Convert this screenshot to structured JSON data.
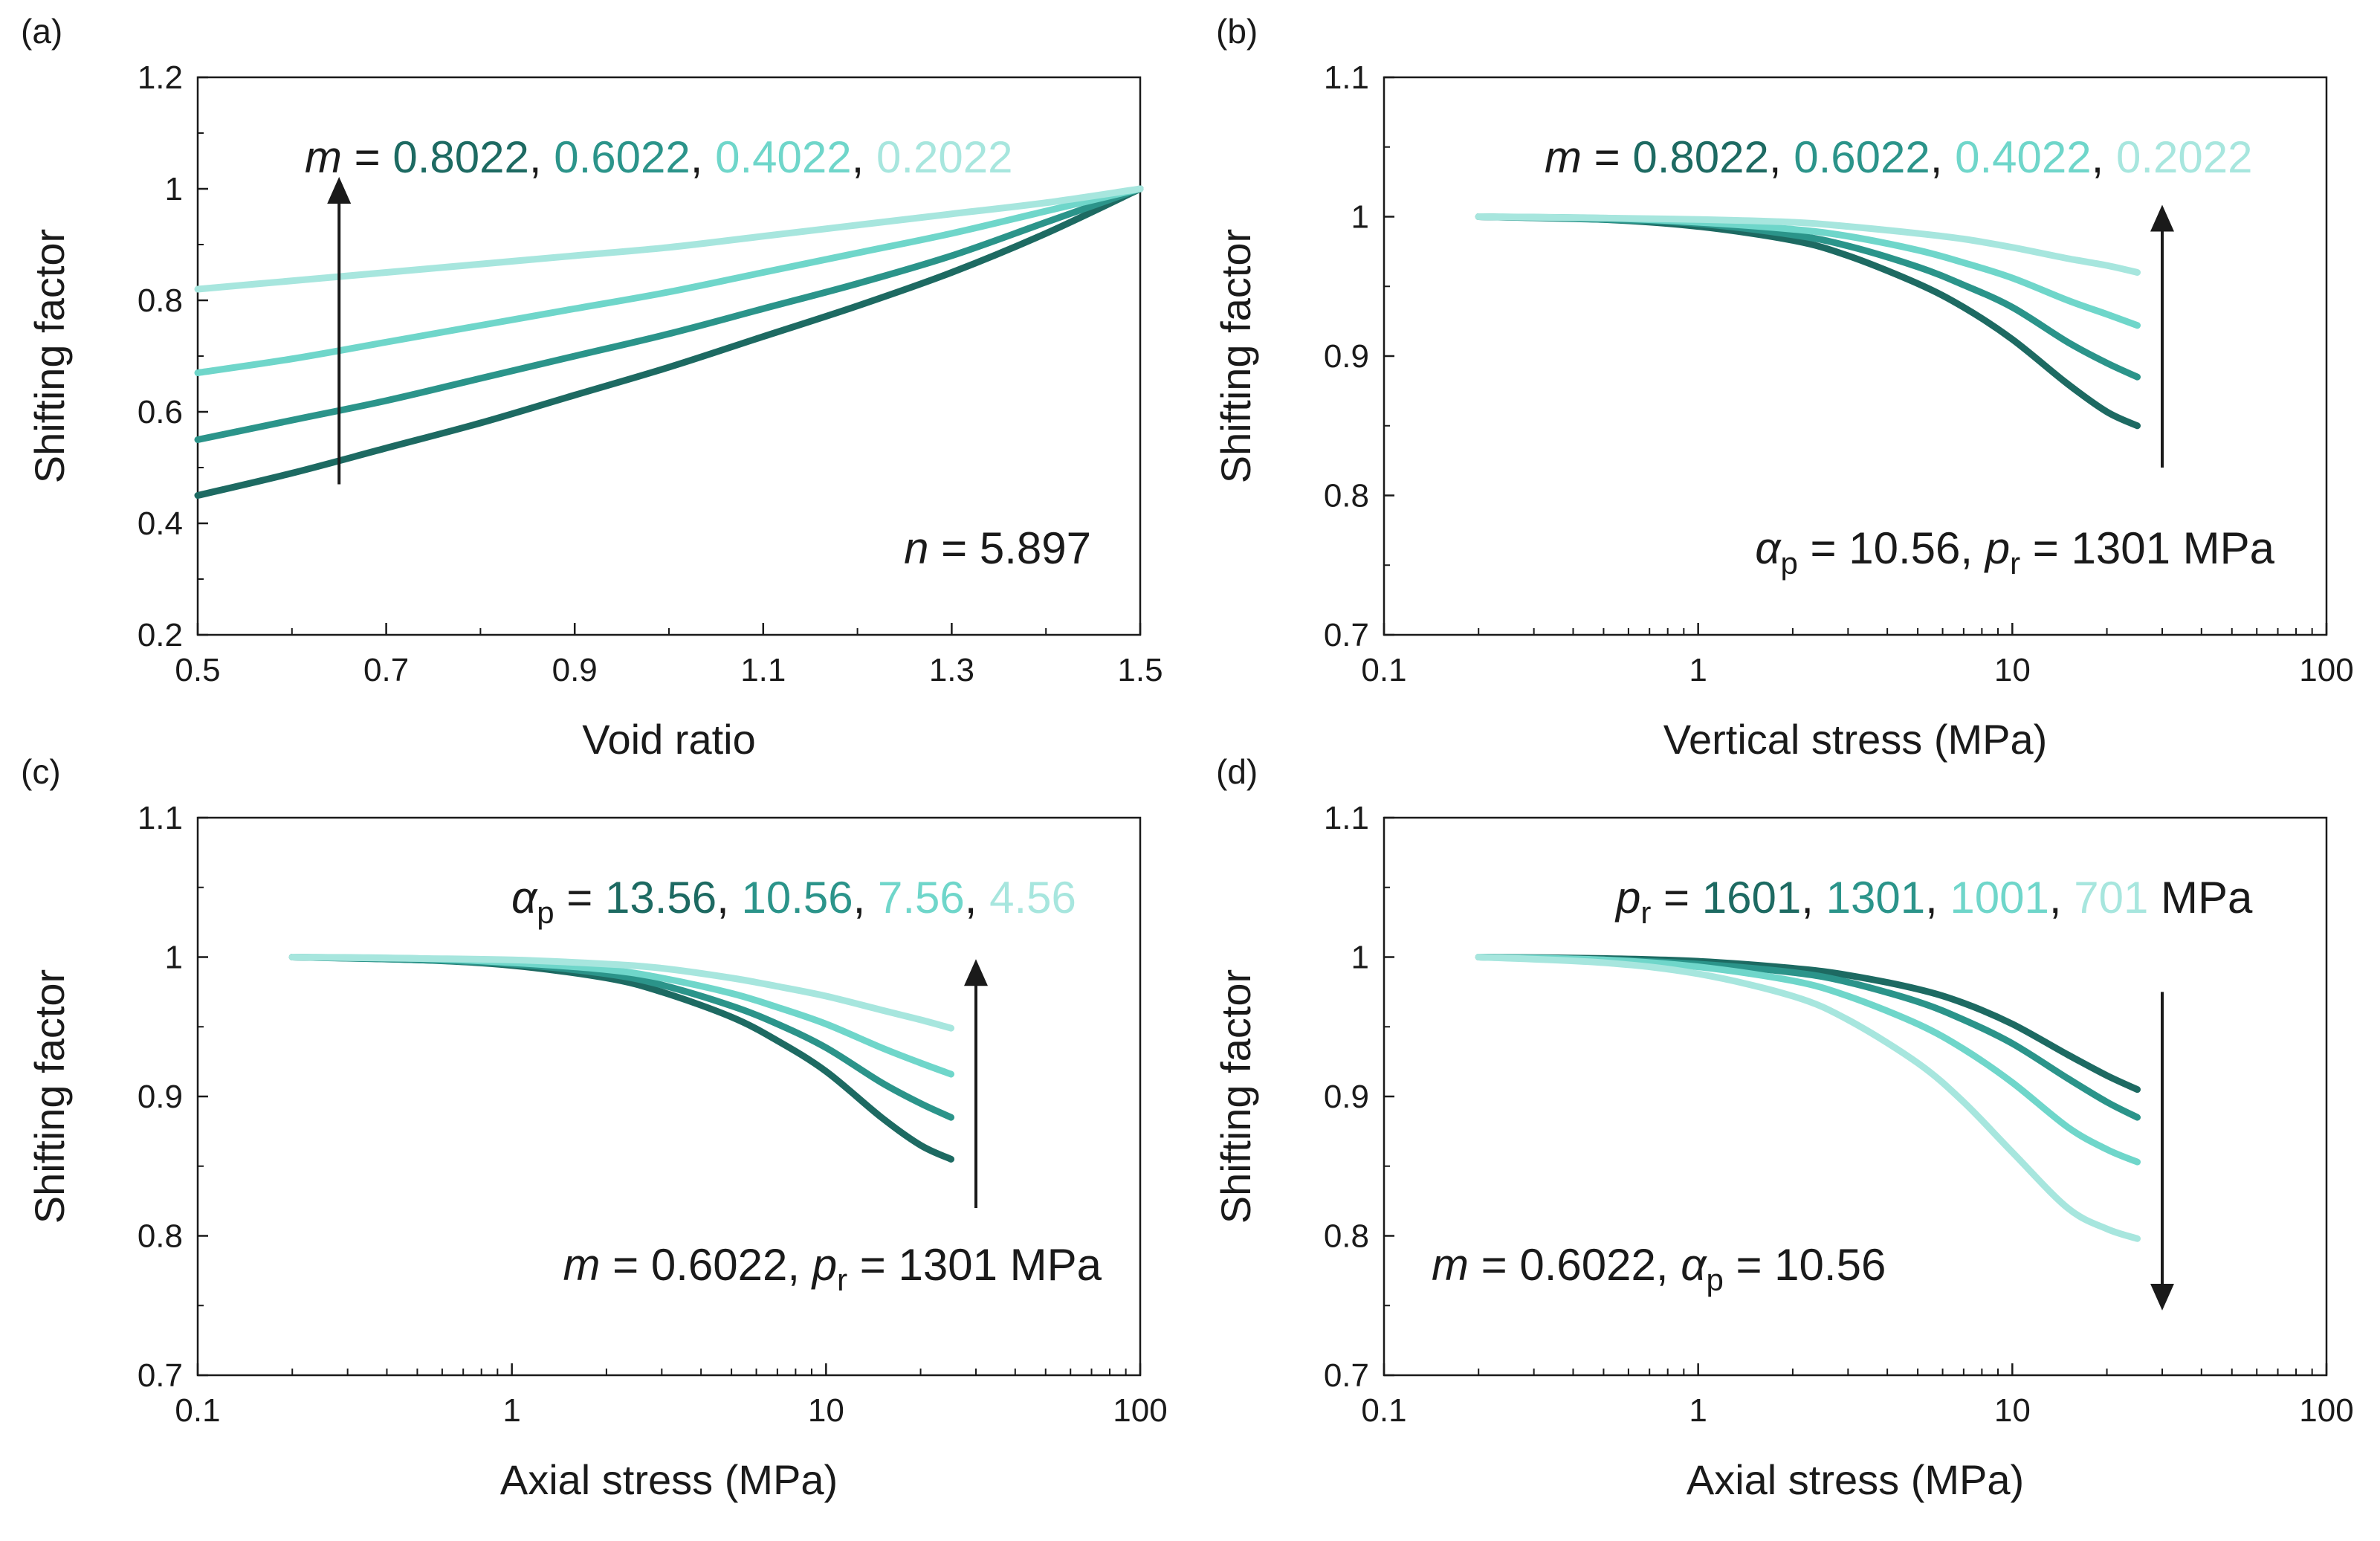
{
  "colors": {
    "darkest": "#1d6a62",
    "dark": "#2b948a",
    "medium": "#6fd6ca",
    "light": "#a7e6de",
    "axis": "#1a1a1a"
  },
  "chart_data": [
    {
      "panel": "(a)",
      "type": "line",
      "xscale": "linear",
      "xlabel": "Void ratio",
      "ylabel": "Shifting factor",
      "xlim": [
        0.5,
        1.5
      ],
      "ylim": [
        0.2,
        1.2
      ],
      "xticks": [
        0.5,
        0.7,
        0.9,
        1.1,
        1.3,
        1.5
      ],
      "xtick_labels": [
        "0.5",
        "0.7",
        "0.9",
        "1.1",
        "1.3",
        "1.5"
      ],
      "yticks": [
        0.2,
        0.4,
        0.6,
        0.8,
        1.0,
        1.2
      ],
      "ytick_labels": [
        "0.2",
        "0.4",
        "0.6",
        "0.8",
        "1",
        "1.2"
      ],
      "legend_parts": [
        {
          "text": "m",
          "italic": true,
          "color_key": "axis"
        },
        {
          "text": " = ",
          "color_key": "axis"
        },
        {
          "text": "0.8022",
          "color_key": "darkest"
        },
        {
          "text": ", ",
          "color_key": "axis"
        },
        {
          "text": "0.6022",
          "color_key": "dark"
        },
        {
          "text": ", ",
          "color_key": "axis"
        },
        {
          "text": "0.4022",
          "color_key": "medium"
        },
        {
          "text": ", ",
          "color_key": "axis"
        },
        {
          "text": "0.2022",
          "color_key": "light"
        }
      ],
      "annotation_parts": [
        {
          "text": "n",
          "italic": true
        },
        {
          "text": " = 5.897"
        }
      ],
      "arrow": {
        "x": 0.65,
        "y_from": 0.47,
        "y_to": 1.0,
        "direction": "up"
      },
      "series": [
        {
          "name": "m = 0.8022",
          "color_key": "darkest",
          "x": [
            0.5,
            0.6,
            0.7,
            0.8,
            0.9,
            1.0,
            1.1,
            1.2,
            1.3,
            1.4,
            1.5
          ],
          "y": [
            0.45,
            0.49,
            0.535,
            0.58,
            0.63,
            0.68,
            0.735,
            0.79,
            0.85,
            0.92,
            1.0
          ]
        },
        {
          "name": "m = 0.6022",
          "color_key": "dark",
          "x": [
            0.5,
            0.6,
            0.7,
            0.8,
            0.9,
            1.0,
            1.1,
            1.2,
            1.3,
            1.4,
            1.5
          ],
          "y": [
            0.55,
            0.585,
            0.62,
            0.66,
            0.7,
            0.74,
            0.785,
            0.83,
            0.88,
            0.94,
            1.0
          ]
        },
        {
          "name": "m = 0.4022",
          "color_key": "medium",
          "x": [
            0.5,
            0.6,
            0.7,
            0.8,
            0.9,
            1.0,
            1.1,
            1.2,
            1.3,
            1.4,
            1.5
          ],
          "y": [
            0.67,
            0.695,
            0.725,
            0.755,
            0.785,
            0.815,
            0.85,
            0.885,
            0.92,
            0.96,
            1.0
          ]
        },
        {
          "name": "m = 0.2022",
          "color_key": "light",
          "x": [
            0.5,
            0.6,
            0.7,
            0.8,
            0.9,
            1.0,
            1.1,
            1.2,
            1.3,
            1.4,
            1.5
          ],
          "y": [
            0.82,
            0.835,
            0.85,
            0.865,
            0.88,
            0.895,
            0.915,
            0.935,
            0.955,
            0.975,
            1.0
          ]
        }
      ]
    },
    {
      "panel": "(b)",
      "type": "line",
      "xscale": "log",
      "xlabel": "Vertical stress (MPa)",
      "ylabel": "Shifting factor",
      "xlim": [
        0.1,
        100
      ],
      "ylim": [
        0.7,
        1.1
      ],
      "xticks": [
        0.1,
        1,
        10,
        100
      ],
      "xtick_labels": [
        "0.1",
        "1",
        "10",
        "100"
      ],
      "yticks": [
        0.7,
        0.8,
        0.9,
        1.0,
        1.1
      ],
      "ytick_labels": [
        "0.7",
        "0.8",
        "0.9",
        "1",
        "1.1"
      ],
      "legend_parts": [
        {
          "text": "m",
          "italic": true,
          "color_key": "axis"
        },
        {
          "text": " = ",
          "color_key": "axis"
        },
        {
          "text": "0.8022",
          "color_key": "darkest"
        },
        {
          "text": ", ",
          "color_key": "axis"
        },
        {
          "text": "0.6022",
          "color_key": "dark"
        },
        {
          "text": ", ",
          "color_key": "axis"
        },
        {
          "text": "0.4022",
          "color_key": "medium"
        },
        {
          "text": ", ",
          "color_key": "axis"
        },
        {
          "text": "0.2022",
          "color_key": "light"
        }
      ],
      "annotation_parts": [
        {
          "text": "α",
          "italic": true
        },
        {
          "text": "p",
          "sub": true
        },
        {
          "text": " = 10.56, "
        },
        {
          "text": "p",
          "italic": true
        },
        {
          "text": "r",
          "sub": true
        },
        {
          "text": " = 1301 MPa"
        }
      ],
      "arrow": {
        "x": 30,
        "y_from": 0.82,
        "y_to": 1.0,
        "direction": "up"
      },
      "series": [
        {
          "name": "m = 0.8022",
          "color_key": "darkest",
          "x": [
            0.2,
            0.5,
            1,
            2,
            3,
            5,
            7,
            10,
            15,
            20,
            25
          ],
          "y": [
            1.0,
            0.998,
            0.993,
            0.983,
            0.972,
            0.952,
            0.935,
            0.912,
            0.88,
            0.86,
            0.85
          ]
        },
        {
          "name": "m = 0.6022",
          "color_key": "dark",
          "x": [
            0.2,
            0.5,
            1,
            2,
            3,
            5,
            7,
            10,
            15,
            20,
            25
          ],
          "y": [
            1.0,
            0.998,
            0.995,
            0.987,
            0.979,
            0.964,
            0.951,
            0.935,
            0.91,
            0.895,
            0.885
          ]
        },
        {
          "name": "m = 0.4022",
          "color_key": "medium",
          "x": [
            0.2,
            0.5,
            1,
            2,
            3,
            5,
            7,
            10,
            15,
            20,
            25
          ],
          "y": [
            1.0,
            0.999,
            0.996,
            0.991,
            0.986,
            0.976,
            0.967,
            0.956,
            0.94,
            0.93,
            0.922
          ]
        },
        {
          "name": "m = 0.2022",
          "color_key": "light",
          "x": [
            0.2,
            0.5,
            1,
            2,
            3,
            5,
            7,
            10,
            15,
            20,
            25
          ],
          "y": [
            1.0,
            0.999,
            0.998,
            0.996,
            0.993,
            0.988,
            0.984,
            0.978,
            0.97,
            0.965,
            0.96
          ]
        }
      ]
    },
    {
      "panel": "(c)",
      "type": "line",
      "xscale": "log",
      "xlabel": "Axial stress (MPa)",
      "ylabel": "Shifting factor",
      "xlim": [
        0.1,
        100
      ],
      "ylim": [
        0.7,
        1.1
      ],
      "xticks": [
        0.1,
        1,
        10,
        100
      ],
      "xtick_labels": [
        "0.1",
        "1",
        "10",
        "100"
      ],
      "yticks": [
        0.7,
        0.8,
        0.9,
        1.0,
        1.1
      ],
      "ytick_labels": [
        "0.7",
        "0.8",
        "0.9",
        "1",
        "1.1"
      ],
      "legend_parts": [
        {
          "text": "α",
          "italic": true,
          "color_key": "axis"
        },
        {
          "text": "p",
          "sub": true,
          "color_key": "axis"
        },
        {
          "text": " = ",
          "color_key": "axis"
        },
        {
          "text": "13.56",
          "color_key": "darkest"
        },
        {
          "text": ", ",
          "color_key": "axis"
        },
        {
          "text": "10.56",
          "color_key": "dark"
        },
        {
          "text": ", ",
          "color_key": "axis"
        },
        {
          "text": "7.56",
          "color_key": "medium"
        },
        {
          "text": ", ",
          "color_key": "axis"
        },
        {
          "text": "4.56",
          "color_key": "light"
        }
      ],
      "annotation_parts": [
        {
          "text": "m",
          "italic": true
        },
        {
          "text": " = 0.6022, "
        },
        {
          "text": "p",
          "italic": true
        },
        {
          "text": "r",
          "sub": true
        },
        {
          "text": " = 1301 MPa"
        }
      ],
      "arrow": {
        "x": 30,
        "y_from": 0.82,
        "y_to": 0.99,
        "direction": "up"
      },
      "series": [
        {
          "name": "alpha_p = 13.56",
          "color_key": "darkest",
          "x": [
            0.2,
            0.5,
            1,
            2,
            3,
            5,
            7,
            10,
            15,
            20,
            25
          ],
          "y": [
            1.0,
            0.998,
            0.994,
            0.985,
            0.975,
            0.957,
            0.94,
            0.918,
            0.885,
            0.865,
            0.855
          ]
        },
        {
          "name": "alpha_p = 10.56",
          "color_key": "dark",
          "x": [
            0.2,
            0.5,
            1,
            2,
            3,
            5,
            7,
            10,
            15,
            20,
            25
          ],
          "y": [
            1.0,
            0.998,
            0.995,
            0.988,
            0.98,
            0.965,
            0.952,
            0.935,
            0.91,
            0.895,
            0.885
          ]
        },
        {
          "name": "alpha_p = 7.56",
          "color_key": "medium",
          "x": [
            0.2,
            0.5,
            1,
            2,
            3,
            5,
            7,
            10,
            15,
            20,
            25
          ],
          "y": [
            1.0,
            0.999,
            0.996,
            0.991,
            0.985,
            0.974,
            0.964,
            0.952,
            0.935,
            0.924,
            0.916
          ]
        },
        {
          "name": "alpha_p = 4.56",
          "color_key": "light",
          "x": [
            0.2,
            0.5,
            1,
            2,
            3,
            5,
            7,
            10,
            15,
            20,
            25
          ],
          "y": [
            1.0,
            0.999,
            0.998,
            0.995,
            0.992,
            0.985,
            0.979,
            0.972,
            0.962,
            0.955,
            0.949
          ]
        }
      ]
    },
    {
      "panel": "(d)",
      "type": "line",
      "xscale": "log",
      "xlabel": "Axial stress (MPa)",
      "ylabel": "Shifting factor",
      "xlim": [
        0.1,
        100
      ],
      "ylim": [
        0.7,
        1.1
      ],
      "xticks": [
        0.1,
        1,
        10,
        100
      ],
      "xtick_labels": [
        "0.1",
        "1",
        "10",
        "100"
      ],
      "yticks": [
        0.7,
        0.8,
        0.9,
        1.0,
        1.1
      ],
      "ytick_labels": [
        "0.7",
        "0.8",
        "0.9",
        "1",
        "1.1"
      ],
      "legend_parts": [
        {
          "text": "p",
          "italic": true,
          "color_key": "axis"
        },
        {
          "text": "r",
          "sub": true,
          "color_key": "axis"
        },
        {
          "text": " = ",
          "color_key": "axis"
        },
        {
          "text": "1601",
          "color_key": "darkest"
        },
        {
          "text": ", ",
          "color_key": "axis"
        },
        {
          "text": "1301",
          "color_key": "dark"
        },
        {
          "text": ", ",
          "color_key": "axis"
        },
        {
          "text": "1001",
          "color_key": "medium"
        },
        {
          "text": ", ",
          "color_key": "axis"
        },
        {
          "text": "701",
          "color_key": "light"
        },
        {
          "text": " MPa",
          "color_key": "axis"
        }
      ],
      "annotation_parts": [
        {
          "text": "m",
          "italic": true
        },
        {
          "text": " = 0.6022, "
        },
        {
          "text": "α",
          "italic": true
        },
        {
          "text": "p",
          "sub": true
        },
        {
          "text": " = 10.56"
        }
      ],
      "arrow": {
        "x": 30,
        "y_from": 0.975,
        "y_to": 0.755,
        "direction": "down"
      },
      "series": [
        {
          "name": "p_r = 1601",
          "color_key": "darkest",
          "x": [
            0.2,
            0.5,
            1,
            2,
            3,
            5,
            7,
            10,
            15,
            20,
            25
          ],
          "y": [
            1.0,
            0.999,
            0.997,
            0.992,
            0.987,
            0.977,
            0.967,
            0.952,
            0.93,
            0.915,
            0.905
          ]
        },
        {
          "name": "p_r = 1301",
          "color_key": "dark",
          "x": [
            0.2,
            0.5,
            1,
            2,
            3,
            5,
            7,
            10,
            15,
            20,
            25
          ],
          "y": [
            1.0,
            0.998,
            0.995,
            0.989,
            0.982,
            0.968,
            0.955,
            0.938,
            0.913,
            0.896,
            0.885
          ]
        },
        {
          "name": "p_r = 1001",
          "color_key": "medium",
          "x": [
            0.2,
            0.5,
            1,
            2,
            3,
            5,
            7,
            10,
            15,
            20,
            25
          ],
          "y": [
            1.0,
            0.998,
            0.993,
            0.983,
            0.972,
            0.952,
            0.934,
            0.91,
            0.878,
            0.862,
            0.853
          ]
        },
        {
          "name": "p_r = 701",
          "color_key": "light",
          "x": [
            0.2,
            0.5,
            1,
            2,
            3,
            5,
            7,
            10,
            15,
            20,
            25
          ],
          "y": [
            1.0,
            0.996,
            0.988,
            0.972,
            0.955,
            0.924,
            0.896,
            0.86,
            0.82,
            0.805,
            0.798
          ]
        }
      ]
    }
  ]
}
